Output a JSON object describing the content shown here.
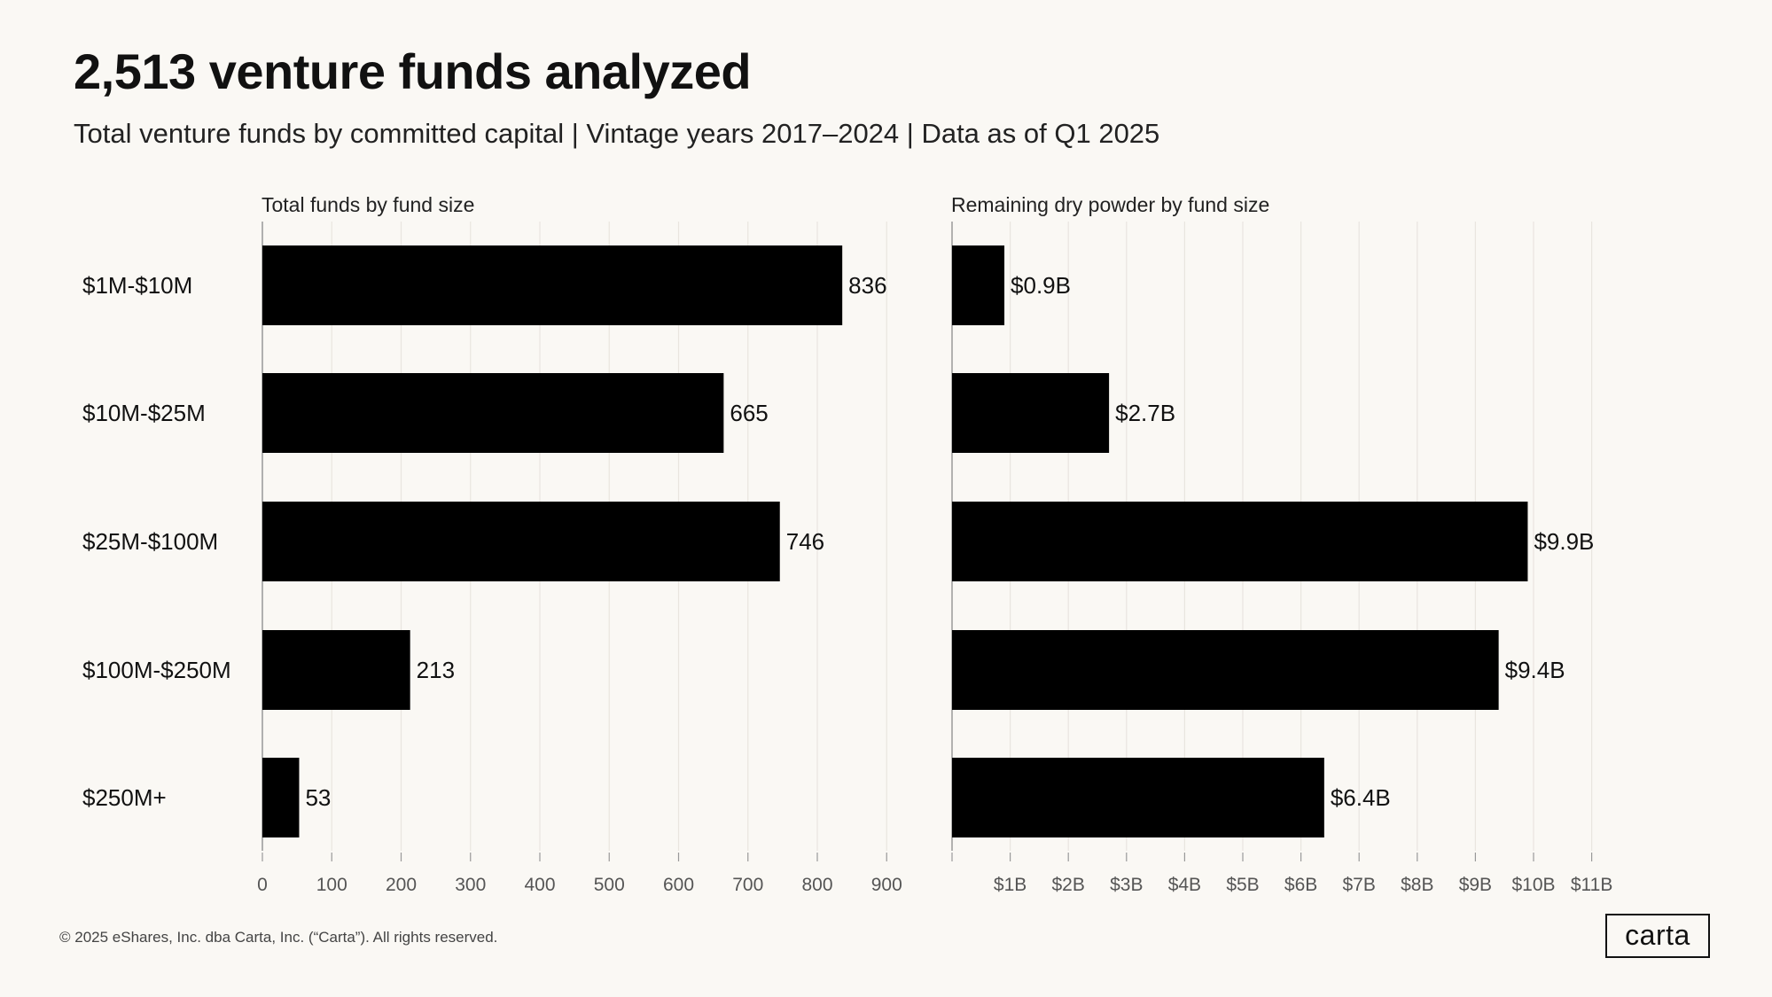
{
  "title": "2,513 venture funds analyzed",
  "subtitle": "Total venture funds by committed capital | Vintage years 2017–2024 | Data as of Q1 2025",
  "footer": "© 2025 eShares, Inc. dba Carta, Inc. (“Carta”). All rights reserved.",
  "logo_text": "carta",
  "colors": {
    "bar": "#000000",
    "background": "#faf8f4",
    "grid": "#e9e5df",
    "axis": "#999999"
  },
  "chart_data": [
    {
      "type": "bar",
      "orientation": "horizontal",
      "title": "Total funds by fund size",
      "categories": [
        "$1M-$10M",
        "$10M-$25M",
        "$25M-$100M",
        "$100M-$250M",
        "$250M+"
      ],
      "values": [
        836,
        665,
        746,
        213,
        53
      ],
      "value_labels": [
        "836",
        "665",
        "746",
        "213",
        "53"
      ],
      "xlim": [
        0,
        900
      ],
      "ticks": [
        0,
        100,
        200,
        300,
        400,
        500,
        600,
        700,
        800,
        900
      ],
      "tick_labels": [
        "0",
        "100",
        "200",
        "300",
        "400",
        "500",
        "600",
        "700",
        "800",
        "900"
      ],
      "grid": true
    },
    {
      "type": "bar",
      "orientation": "horizontal",
      "title": "Remaining dry powder by fund size",
      "categories": [
        "$1M-$10M",
        "$10M-$25M",
        "$25M-$100M",
        "$100M-$250M",
        "$250M+"
      ],
      "values": [
        0.9,
        2.7,
        9.9,
        9.4,
        6.4
      ],
      "value_labels": [
        "$0.9B",
        "$2.7B",
        "$9.9B",
        "$9.4B",
        "$6.4B"
      ],
      "xlim": [
        0,
        11
      ],
      "ticks": [
        1,
        2,
        3,
        4,
        5,
        6,
        7,
        8,
        9,
        10,
        11
      ],
      "tick_labels": [
        "$1B",
        "$2B",
        "$3B",
        "$4B",
        "$5B",
        "$6B",
        "$7B",
        "$8B",
        "$9B",
        "$10B",
        "$11B"
      ],
      "grid": true
    }
  ]
}
